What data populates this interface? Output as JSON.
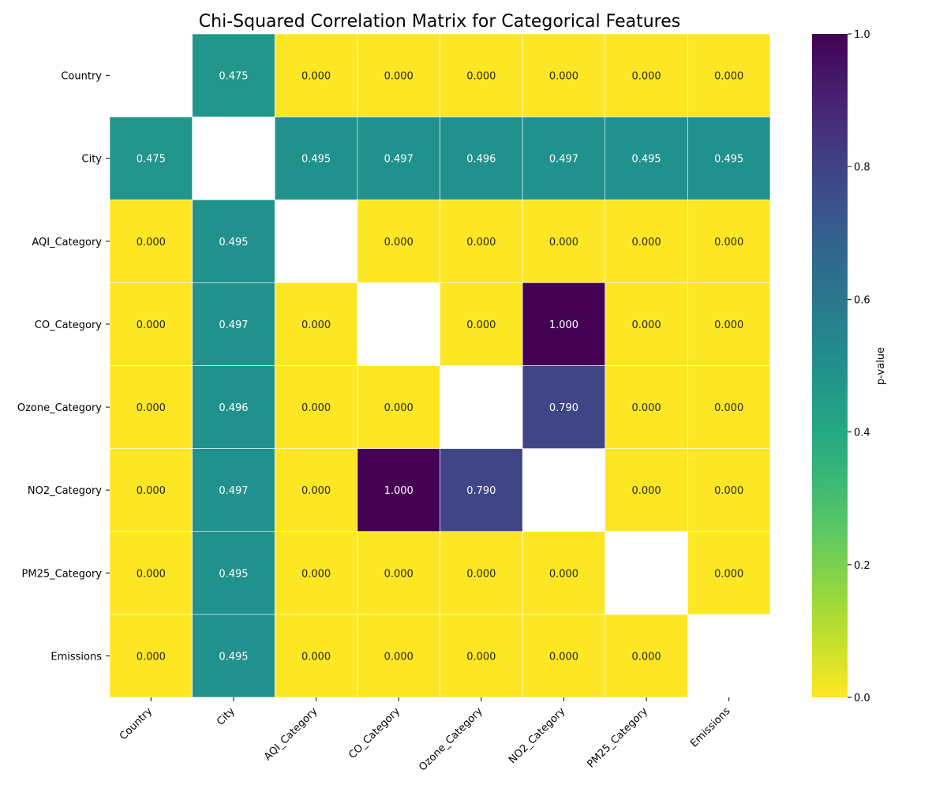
{
  "chart_data": {
    "type": "heatmap",
    "title": "Chi-Squared Correlation Matrix for Categorical Features",
    "row_labels": [
      "Country",
      "City",
      "AQI_Category",
      "CO_Category",
      "Ozone_Category",
      "NO2_Category",
      "PM25_Category",
      "Emissions"
    ],
    "col_labels": [
      "Country",
      "City",
      "AQI_Category",
      "CO_Category",
      "Ozone_Category",
      "NO2_Category",
      "PM25_Category",
      "Emissions"
    ],
    "values": [
      [
        null,
        0.475,
        0.0,
        0.0,
        0.0,
        0.0,
        0.0,
        0.0
      ],
      [
        0.475,
        null,
        0.495,
        0.497,
        0.496,
        0.497,
        0.495,
        0.495
      ],
      [
        0.0,
        0.495,
        null,
        0.0,
        0.0,
        0.0,
        0.0,
        0.0
      ],
      [
        0.0,
        0.497,
        0.0,
        null,
        0.0,
        1.0,
        0.0,
        0.0
      ],
      [
        0.0,
        0.496,
        0.0,
        0.0,
        null,
        0.79,
        0.0,
        0.0
      ],
      [
        0.0,
        0.497,
        0.0,
        1.0,
        0.79,
        null,
        0.0,
        0.0
      ],
      [
        0.0,
        0.495,
        0.0,
        0.0,
        0.0,
        0.0,
        null,
        0.0
      ],
      [
        0.0,
        0.495,
        0.0,
        0.0,
        0.0,
        0.0,
        0.0,
        null
      ]
    ],
    "colormap": "viridis_r",
    "vmin": 0.0,
    "vmax": 1.0,
    "colorbar": {
      "label": "p-value",
      "ticks": [
        0.0,
        0.2,
        0.4,
        0.6,
        0.8,
        1.0
      ],
      "tick_labels": [
        "0.0",
        "0.2",
        "0.4",
        "0.6",
        "0.8",
        "1.0"
      ]
    },
    "annotation_format": "0.000",
    "grid": false
  }
}
